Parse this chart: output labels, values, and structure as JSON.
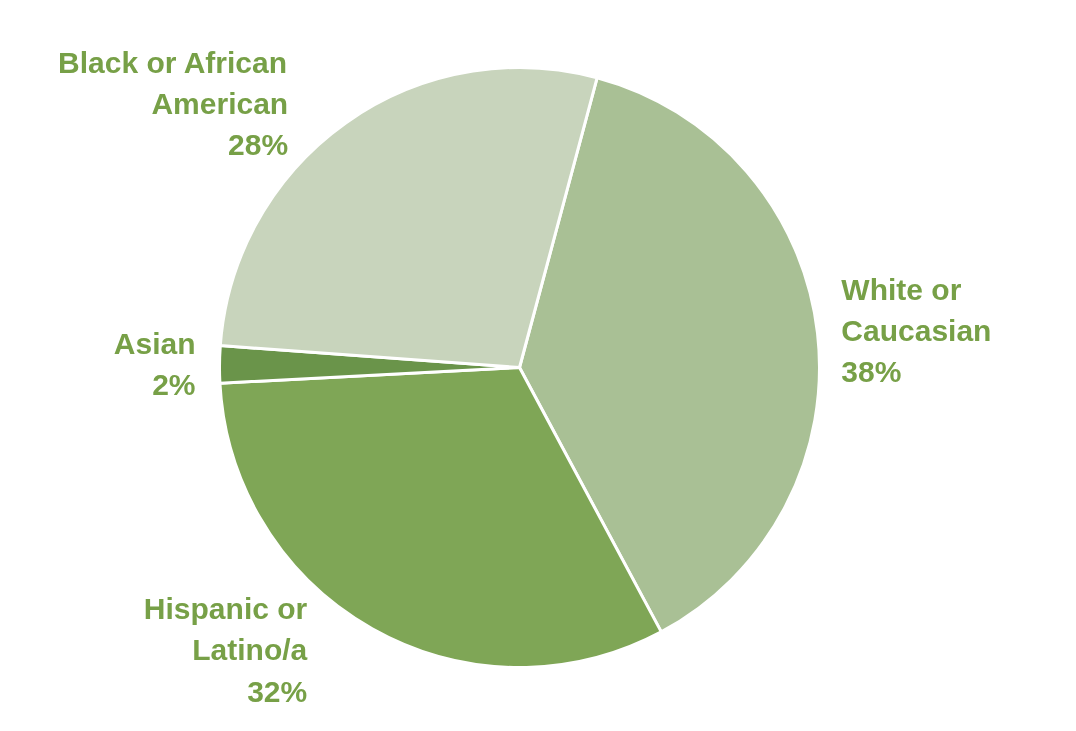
{
  "chart_data": {
    "type": "pie",
    "categories": [
      "White or Caucasian",
      "Hispanic or Latino/a",
      "Asian",
      "Black or African American"
    ],
    "values": [
      38,
      32,
      2,
      28
    ],
    "colors": [
      "#a9c095",
      "#7fa656",
      "#6a944a",
      "#c8d4bc"
    ],
    "value_labels": [
      "38%",
      "32%",
      "2%",
      "28%"
    ]
  }
}
